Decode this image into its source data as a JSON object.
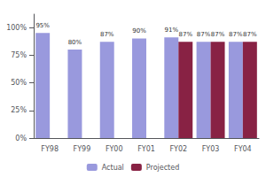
{
  "chart_data": {
    "type": "bar",
    "categories": [
      "FY98",
      "FY99",
      "FY00",
      "FY01",
      "FY02",
      "FY03",
      "FY04"
    ],
    "series": [
      {
        "name": "Actual",
        "color": "#9999dd",
        "values": [
          95,
          80,
          87,
          90,
          91,
          87,
          87
        ],
        "value_labels": [
          "95%",
          "80%",
          "87%",
          "90%",
          "91%",
          "87%",
          "87%"
        ]
      },
      {
        "name": "Projected",
        "color": "#882244",
        "values": [
          null,
          null,
          null,
          null,
          87,
          87,
          87
        ],
        "value_labels": [
          null,
          null,
          null,
          null,
          "87%",
          "87%",
          "87%"
        ]
      }
    ],
    "ylim": [
      0,
      112
    ],
    "yticks": [
      {
        "value": 0,
        "label": "0%"
      },
      {
        "value": 25,
        "label": "25%"
      },
      {
        "value": 50,
        "label": "50%"
      },
      {
        "value": 75,
        "label": "75%"
      },
      {
        "value": 100,
        "label": "100%"
      }
    ],
    "grid": false,
    "legend": "bottom",
    "data_labels": true
  }
}
